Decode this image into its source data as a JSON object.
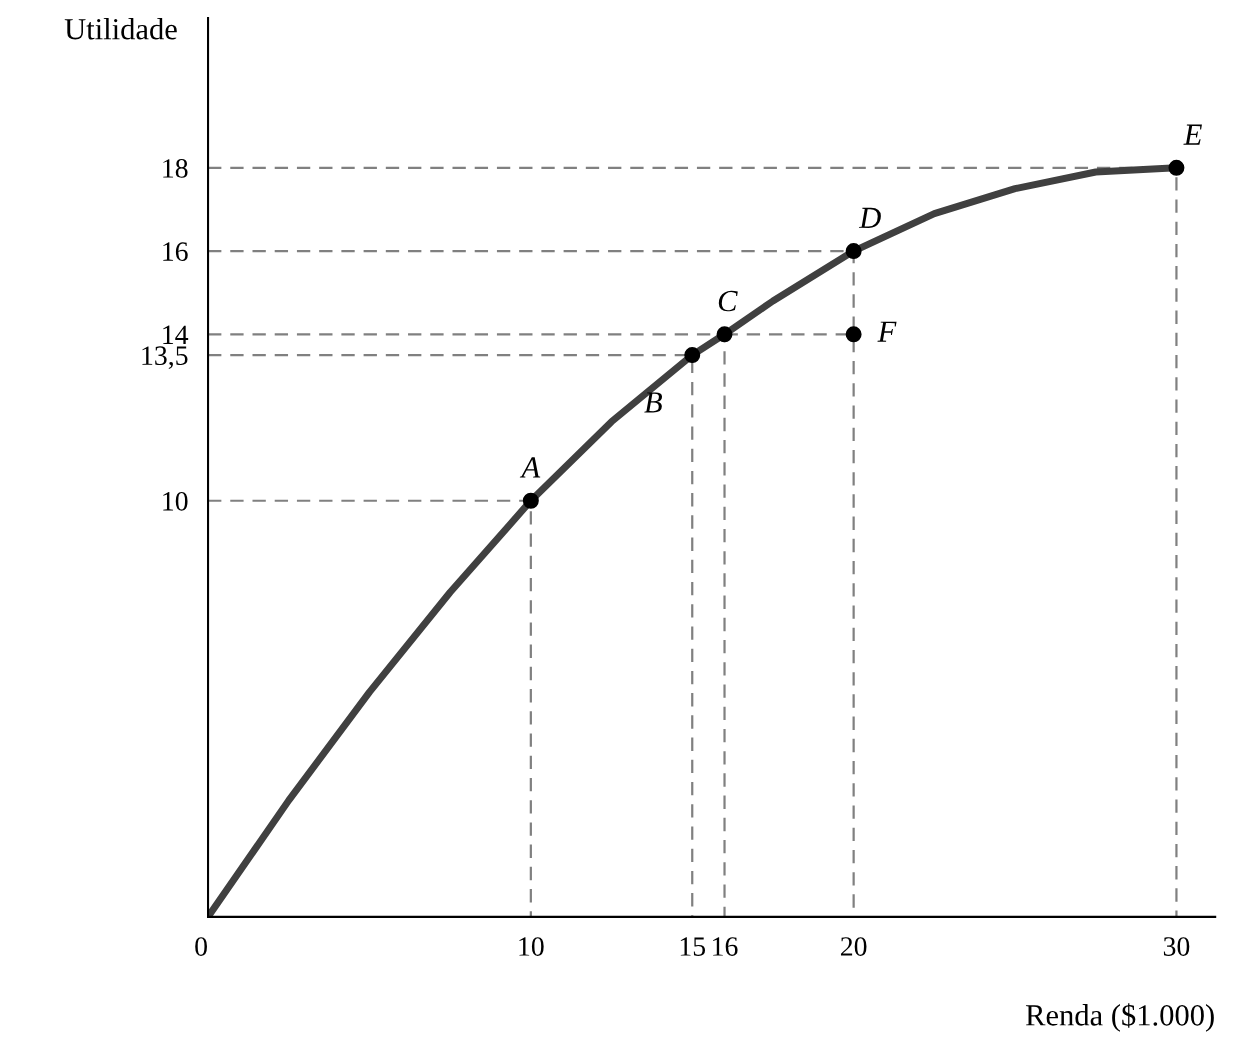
{
  "chart_data": {
    "type": "line",
    "xlabel": "Renda ($1.000)",
    "ylabel": "Utilidade",
    "xlim": [
      0,
      31.2
    ],
    "ylim": [
      0,
      21.6
    ],
    "xticks": [
      0,
      10,
      15,
      16,
      20,
      30
    ],
    "yticks": [
      10,
      {
        "value": 13.5,
        "label": "13,5"
      },
      14,
      16,
      18
    ],
    "grid": false,
    "legend": false,
    "series": [
      {
        "type": "line",
        "color": "#808080",
        "line_style": "dashed",
        "marker": "none",
        "x": [
          0,
          10,
          10
        ],
        "values": [
          10,
          10,
          0
        ]
      },
      {
        "type": "line",
        "color": "#808080",
        "line_style": "dashed",
        "marker": "none",
        "x": [
          0,
          15,
          15
        ],
        "values": [
          13.5,
          13.5,
          0
        ]
      },
      {
        "type": "line",
        "color": "#808080",
        "line_style": "dashed",
        "marker": "none",
        "x": [
          0,
          16,
          16
        ],
        "values": [
          14,
          14,
          0
        ]
      },
      {
        "type": "line",
        "color": "#808080",
        "line_style": "dashed",
        "marker": "none",
        "x": [
          16,
          20
        ],
        "values": [
          14,
          14
        ]
      },
      {
        "type": "line",
        "color": "#808080",
        "line_style": "dashed",
        "marker": "none",
        "x": [
          0,
          20,
          20
        ],
        "values": [
          16,
          16,
          0
        ]
      },
      {
        "type": "line",
        "color": "#808080",
        "line_style": "dashed",
        "marker": "none",
        "x": [
          0,
          30,
          30
        ],
        "values": [
          18,
          18,
          0
        ]
      },
      {
        "color": "#404040",
        "line_style": "solid",
        "marker": "none",
        "x": [
          0,
          2.5,
          5,
          7.5,
          10,
          12.5,
          15,
          16,
          17.5,
          20,
          22.5,
          25,
          27.5,
          30
        ],
        "values": [
          0,
          2.8,
          5.4,
          7.8,
          10,
          11.9,
          13.5,
          14,
          14.8,
          16,
          16.9,
          17.5,
          17.9,
          18
        ]
      },
      {
        "type": "scatter",
        "color": "#000000",
        "marker": "circle",
        "x": [
          10,
          15,
          16,
          20,
          20,
          30
        ],
        "values": [
          10,
          13.5,
          14,
          16,
          14,
          18
        ]
      }
    ],
    "annotations": [
      {
        "text": "A",
        "x": 10,
        "y": 10
      },
      {
        "text": "B",
        "x": 15,
        "y": 13.5
      },
      {
        "text": "C",
        "x": 16,
        "y": 14
      },
      {
        "text": "D",
        "x": 20,
        "y": 16
      },
      {
        "text": "E",
        "x": 30,
        "y": 18
      },
      {
        "text": "F",
        "x": 20,
        "y": 14
      }
    ]
  }
}
